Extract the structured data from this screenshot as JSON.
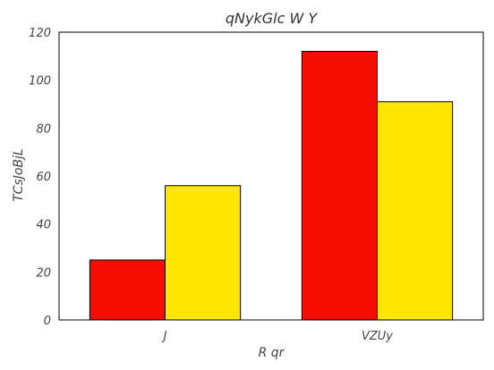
{
  "chart_data": {
    "type": "bar",
    "title": "qNykGlc W Y",
    "xlabel": "R qr",
    "ylabel": "TCsJoBjL",
    "categories": [
      "J",
      "VZUy"
    ],
    "series": [
      {
        "values": [
          25,
          112
        ],
        "color": "#f50d00"
      },
      {
        "values": [
          56,
          91
        ],
        "color": "#ffe500"
      }
    ],
    "ylim": [
      0,
      120
    ],
    "yticks": [
      0,
      20,
      40,
      60,
      80,
      100,
      120
    ],
    "grid": false,
    "legend": "none"
  }
}
